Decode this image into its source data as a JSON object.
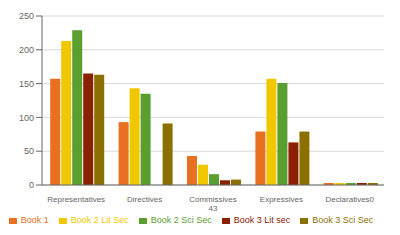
{
  "chart_data": {
    "type": "bar",
    "categories": [
      "Representatives",
      "Directives",
      "Commissives\n43",
      "Expressives",
      "Declaratives0"
    ],
    "series": [
      {
        "name": "Book 1",
        "color": "#E87020",
        "values": [
          157,
          93,
          43,
          79,
          3
        ]
      },
      {
        "name": "Book 2 Lit Sec",
        "color": "#F0C800",
        "values": [
          213,
          143,
          30,
          157,
          3
        ]
      },
      {
        "name": "Book 2 Sci Sec",
        "color": "#5A9E2F",
        "values": [
          229,
          135,
          16,
          151,
          3
        ]
      },
      {
        "name": "Book 3 Lit sec",
        "color": "#8B2000",
        "values": [
          165,
          0,
          7,
          63,
          3
        ]
      },
      {
        "name": "Book 3 Sci Sec",
        "color": "#8B7000",
        "values": [
          163,
          91,
          8,
          79,
          3
        ]
      }
    ],
    "ylim": [
      0,
      250
    ],
    "yticks": [
      0,
      50,
      100,
      150,
      200,
      250
    ],
    "grid": true,
    "legend": "bottom"
  }
}
